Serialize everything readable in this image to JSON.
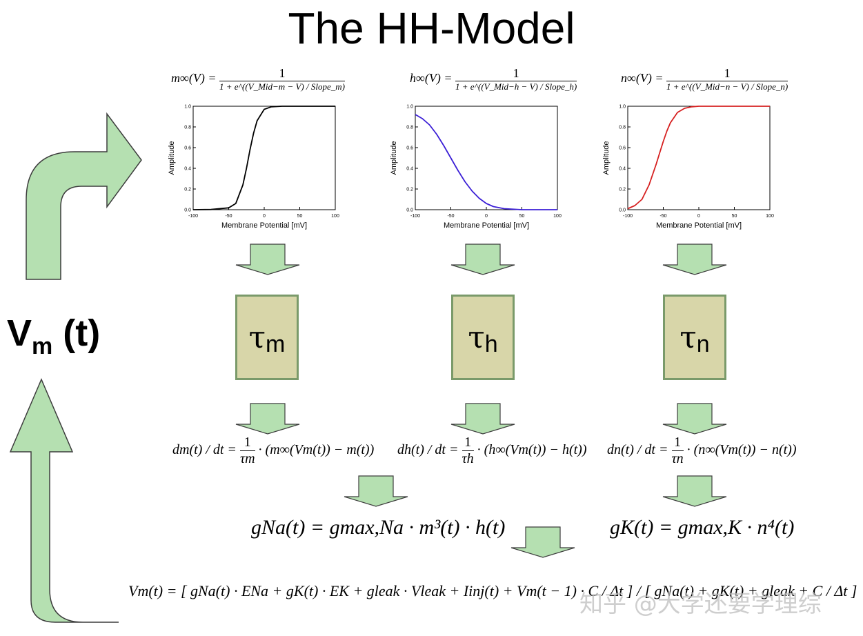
{
  "title": "The HH-Model",
  "vm_label": {
    "main": "V",
    "sub": "m",
    "tail": " (t)"
  },
  "gate_equations": [
    {
      "lhs": "m∞(V) =",
      "numerator": "1",
      "denominator": "1 + e^((V_Mid−m − V) / Slope_m)"
    },
    {
      "lhs": "h∞(V) =",
      "numerator": "1",
      "denominator": "1 + e^((V_Mid−h − V) / Slope_h)"
    },
    {
      "lhs": "n∞(V) =",
      "numerator": "1",
      "denominator": "1 + e^((V_Mid−n − V) / Slope_n)"
    }
  ],
  "tau_boxes": [
    {
      "symbol": "τ",
      "sub": "m"
    },
    {
      "symbol": "τ",
      "sub": "h"
    },
    {
      "symbol": "τ",
      "sub": "n"
    }
  ],
  "ode_equations": [
    {
      "lhs": "dm(t) / dt =",
      "numerator": "1",
      "denominator": "τm",
      "rhs": "· (m∞(Vm(t)) − m(t))"
    },
    {
      "lhs": "dh(t) / dt =",
      "numerator": "1",
      "denominator": "τh",
      "rhs": "· (h∞(Vm(t)) − h(t))"
    },
    {
      "lhs": "dn(t) / dt =",
      "numerator": "1",
      "denominator": "τn",
      "rhs": "· (n∞(Vm(t)) − n(t))"
    }
  ],
  "conductances": {
    "na": "gNa(t) = gmax,Na · m³(t) · h(t)",
    "k": "gK(t) = gmax,K · n⁴(t)"
  },
  "voltage_equation": {
    "lhs": "Vm(t) =",
    "numerator_part": "[ gNa(t) · ENa + gK(t) · EK + gleak · Vleak + Iinj(t) + Vm(t − 1) · C / Δt ]",
    "denominator_part": "/ [ gNa(t) + gK(t) + gleak + C / Δt ]"
  },
  "watermark": "知乎 @大学还要学理综",
  "colors": {
    "arrow_fill": "#b5e0b1",
    "arrow_stroke": "#3d3d3d",
    "tau_fill": "#d8d6a9",
    "tau_border": "#7a9a6a",
    "curve_m": "#000000",
    "curve_h": "#3b1fd6",
    "curve_n": "#d62020"
  },
  "chart_data": [
    {
      "type": "line",
      "xlabel": "Membrane Potential [mV]",
      "ylabel": "Amplitude",
      "xlim": [
        -100,
        100
      ],
      "ylim": [
        0,
        1
      ],
      "xticks": [
        -100,
        -50,
        0,
        50,
        100
      ],
      "yticks": [
        "0.0",
        "0.2",
        "0.4",
        "0.6",
        "0.8",
        "1.0"
      ],
      "series": [
        {
          "x": [
            -100,
            -75,
            -50,
            -40,
            -30,
            -25,
            -20,
            -15,
            -10,
            0,
            10,
            25,
            50,
            75,
            100
          ],
          "y": [
            0.0,
            0.002,
            0.018,
            0.06,
            0.24,
            0.4,
            0.58,
            0.74,
            0.86,
            0.97,
            0.995,
            1.0,
            1.0,
            1.0,
            1.0
          ]
        }
      ]
    },
    {
      "type": "line",
      "xlabel": "Membrane Potential [mV]",
      "ylabel": "Amplitude",
      "xlim": [
        -100,
        100
      ],
      "ylim": [
        0,
        1
      ],
      "xticks": [
        -100,
        -50,
        0,
        50,
        100
      ],
      "yticks": [
        "0.0",
        "0.2",
        "0.4",
        "0.6",
        "0.8",
        "1.0"
      ],
      "series": [
        {
          "x": [
            -100,
            -90,
            -80,
            -70,
            -60,
            -50,
            -40,
            -30,
            -20,
            -10,
            0,
            10,
            25,
            50,
            75,
            100
          ],
          "y": [
            0.92,
            0.88,
            0.82,
            0.73,
            0.62,
            0.5,
            0.38,
            0.27,
            0.18,
            0.11,
            0.06,
            0.03,
            0.01,
            0.0,
            0.0,
            0.0
          ]
        }
      ]
    },
    {
      "type": "line",
      "xlabel": "Membrane Potential [mV]",
      "ylabel": "Amplitude",
      "xlim": [
        -100,
        100
      ],
      "ylim": [
        0,
        1
      ],
      "xticks": [
        -100,
        -50,
        0,
        50,
        100
      ],
      "yticks": [
        "0.0",
        "0.2",
        "0.4",
        "0.6",
        "0.8",
        "1.0"
      ],
      "series": [
        {
          "x": [
            -100,
            -90,
            -80,
            -70,
            -60,
            -55,
            -50,
            -45,
            -40,
            -30,
            -20,
            -10,
            0,
            25,
            50,
            100
          ],
          "y": [
            0.01,
            0.04,
            0.1,
            0.24,
            0.44,
            0.55,
            0.66,
            0.76,
            0.84,
            0.94,
            0.98,
            0.995,
            1.0,
            1.0,
            1.0,
            1.0
          ]
        }
      ]
    }
  ]
}
